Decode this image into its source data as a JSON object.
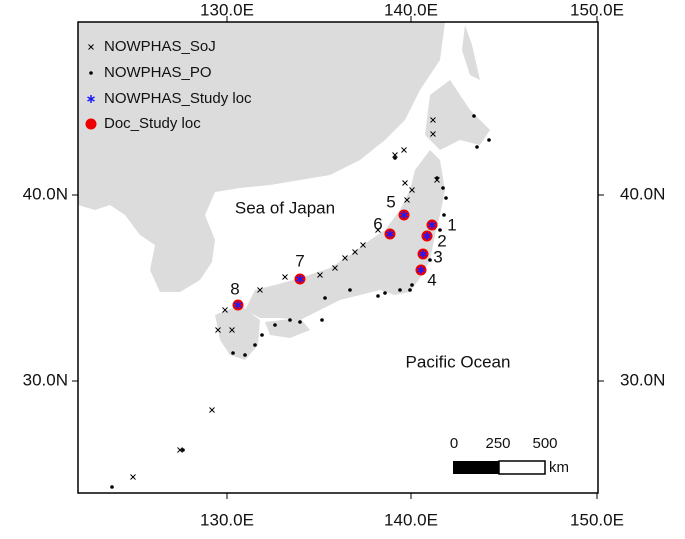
{
  "axes": {
    "top": [
      "130.0E",
      "140.0E",
      "150.0E"
    ],
    "bottom": [
      "130.0E",
      "140.0E",
      "150.0E"
    ],
    "left": [
      "40.0N",
      "30.0N"
    ],
    "right": [
      "40.0N",
      "30.0N"
    ]
  },
  "legend": [
    "NOWPHAS_SoJ",
    "NOWPHAS_PO",
    "NOWPHAS_Study loc",
    "Doc_Study loc"
  ],
  "labels": {
    "sea": "Sea of Japan",
    "ocean": "Pacific Ocean"
  },
  "sites": [
    "1",
    "2",
    "3",
    "4",
    "5",
    "6",
    "7",
    "8"
  ],
  "scale_bar": {
    "ticks": [
      "0",
      "250",
      "500"
    ],
    "unit": "km"
  }
}
